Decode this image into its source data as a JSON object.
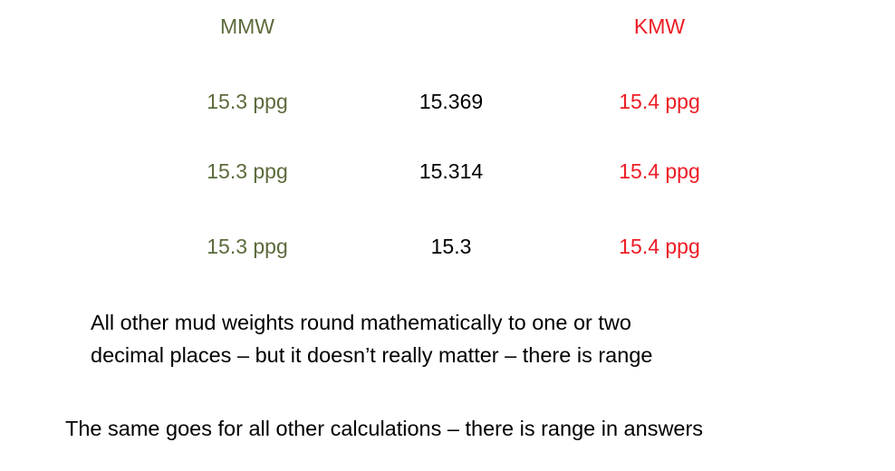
{
  "headers": {
    "left": "MMW",
    "right": "KMW"
  },
  "rows": [
    {
      "mmw": "15.3 ppg",
      "value": "15.369",
      "kmw": "15.4 ppg"
    },
    {
      "mmw": "15.3 ppg",
      "value": "15.314",
      "kmw": "15.4 ppg"
    },
    {
      "mmw": "15.3 ppg",
      "value": "15.3",
      "kmw": "15.4 ppg"
    }
  ],
  "paragraph": {
    "line1": "All other mud weights round mathematically to one or two",
    "line2": "decimal places – but it doesn’t really matter – there is range"
  },
  "footer": "The same goes for all other calculations – there is range in answers",
  "colors": {
    "mmw": "#5b6b3c",
    "kmw": "#ee1c25",
    "text": "#000000"
  }
}
